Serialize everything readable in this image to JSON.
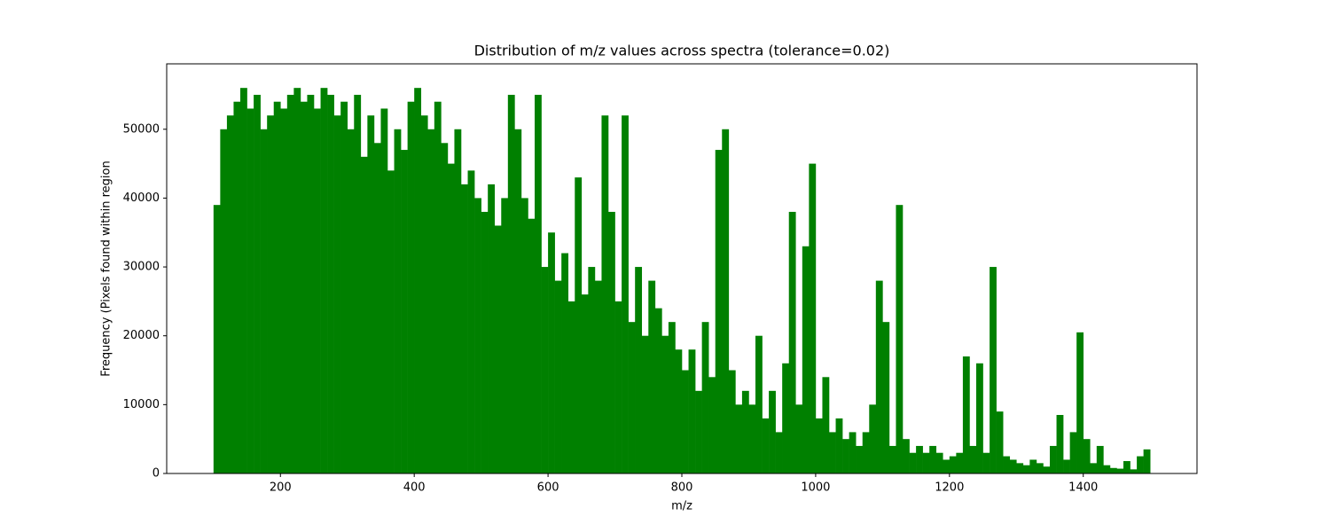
{
  "chart_data": {
    "type": "histogram",
    "title": "Distribution of m/z values across spectra (tolerance=0.02)",
    "x_label": "m/z",
    "y_label": "Frequency (Pixels found within region",
    "color": "#008000",
    "bins": [
      100,
      110,
      120,
      130,
      140,
      150,
      160,
      170,
      180,
      190,
      200,
      210,
      220,
      230,
      240,
      250,
      260,
      270,
      280,
      290,
      300,
      310,
      320,
      330,
      340,
      350,
      360,
      370,
      380,
      390,
      400,
      410,
      420,
      430,
      440,
      450,
      460,
      470,
      480,
      490,
      500,
      510,
      520,
      530,
      540,
      550,
      560,
      570,
      580,
      590,
      600,
      610,
      620,
      630,
      640,
      650,
      660,
      670,
      680,
      690,
      700,
      710,
      720,
      730,
      740,
      750,
      760,
      770,
      780,
      790,
      800,
      810,
      820,
      830,
      840,
      850,
      860,
      870,
      880,
      890,
      900,
      910,
      920,
      930,
      940,
      950,
      960,
      970,
      980,
      990,
      1000,
      1010,
      1020,
      1030,
      1040,
      1050,
      1060,
      1070,
      1080,
      1090,
      1100,
      1110,
      1120,
      1130,
      1140,
      1150,
      1160,
      1170,
      1180,
      1190,
      1200,
      1210,
      1220,
      1230,
      1240,
      1250,
      1260,
      1270,
      1280,
      1290,
      1300,
      1310,
      1320,
      1330,
      1340,
      1350,
      1360,
      1370,
      1380,
      1390,
      1400,
      1410,
      1420,
      1430,
      1440,
      1450,
      1460,
      1470,
      1480,
      1490,
      1500
    ],
    "values": [
      39000,
      50000,
      52000,
      54000,
      56000,
      53000,
      55000,
      50000,
      52000,
      54000,
      53000,
      55000,
      56000,
      54000,
      55000,
      53000,
      56000,
      55000,
      52000,
      54000,
      50000,
      55000,
      46000,
      52000,
      48000,
      53000,
      44000,
      50000,
      47000,
      54000,
      56000,
      52000,
      50000,
      54000,
      48000,
      45000,
      50000,
      42000,
      44000,
      40000,
      38000,
      42000,
      36000,
      40000,
      55000,
      50000,
      40000,
      37000,
      55000,
      30000,
      35000,
      28000,
      32000,
      25000,
      43000,
      26000,
      30000,
      28000,
      52000,
      38000,
      25000,
      52000,
      22000,
      30000,
      20000,
      28000,
      24000,
      20000,
      22000,
      18000,
      15000,
      18000,
      12000,
      22000,
      14000,
      47000,
      50000,
      15000,
      10000,
      12000,
      10000,
      20000,
      8000,
      12000,
      6000,
      16000,
      38000,
      10000,
      33000,
      45000,
      8000,
      14000,
      6000,
      8000,
      5000,
      6000,
      4000,
      6000,
      10000,
      28000,
      22000,
      4000,
      39000,
      5000,
      3000,
      4000,
      3000,
      4000,
      3000,
      2000,
      2500,
      3000,
      17000,
      4000,
      16000,
      3000,
      30000,
      9000,
      2500,
      2000,
      1500,
      1200,
      2000,
      1500,
      1000,
      4000,
      8500,
      2000,
      6000,
      20500,
      5000,
      1500,
      4000,
      1200,
      800,
      700,
      1800,
      600,
      2500,
      3500
    ],
    "xlim": [
      30,
      1570
    ],
    "ylim": [
      0,
      59500
    ],
    "xticks": [
      200,
      400,
      600,
      800,
      1000,
      1200,
      1400
    ],
    "yticks": [
      0,
      10000,
      20000,
      30000,
      40000,
      50000
    ]
  }
}
